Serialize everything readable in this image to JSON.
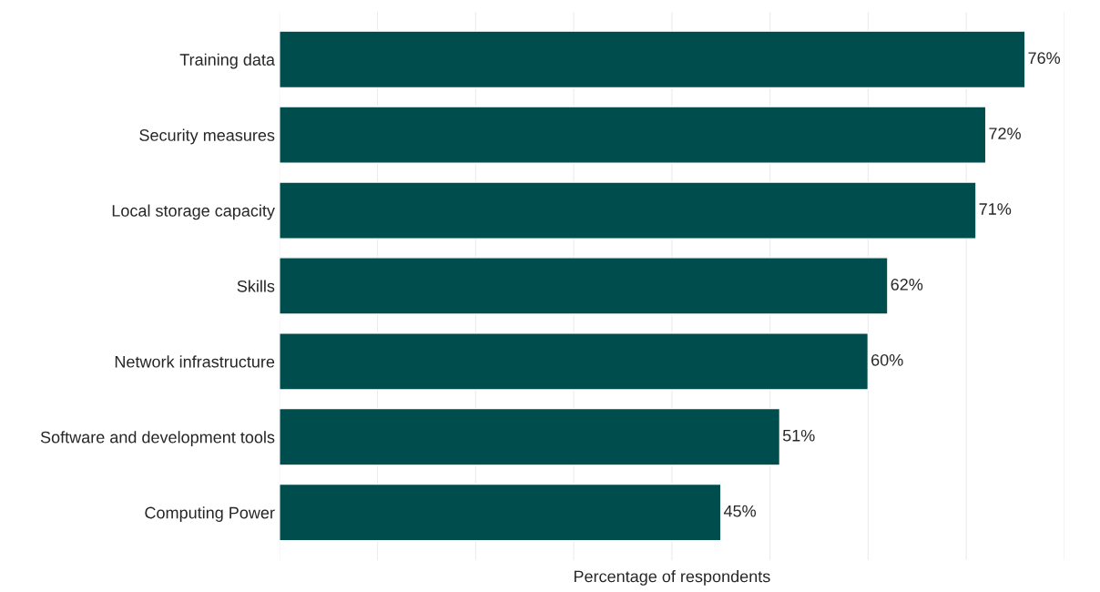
{
  "chart_data": {
    "type": "bar",
    "orientation": "horizontal",
    "categories": [
      "Training data",
      "Security measures",
      "Local storage capacity",
      "Skills",
      "Network infrastructure",
      "Software and development tools",
      "Computing Power"
    ],
    "values": [
      76,
      72,
      71,
      62,
      60,
      51,
      45
    ],
    "value_labels": [
      "76%",
      "72%",
      "71%",
      "62%",
      "60%",
      "51%",
      "45%"
    ],
    "color": "#004d4d",
    "xlabel": "Percentage of respondents",
    "xlim": [
      0,
      80
    ],
    "xticks": [
      {
        "value": 0,
        "label": null
      },
      {
        "value": 10,
        "label": null
      },
      {
        "value": 20,
        "label": null
      },
      {
        "value": 30,
        "label": null
      },
      {
        "value": 40,
        "label": null
      },
      {
        "value": 50,
        "label": null
      },
      {
        "value": 60,
        "label": null
      },
      {
        "value": 70,
        "label": null
      },
      {
        "value": 80,
        "label": null
      }
    ],
    "tick_labels": "y",
    "grid": "x",
    "legend": false
  }
}
